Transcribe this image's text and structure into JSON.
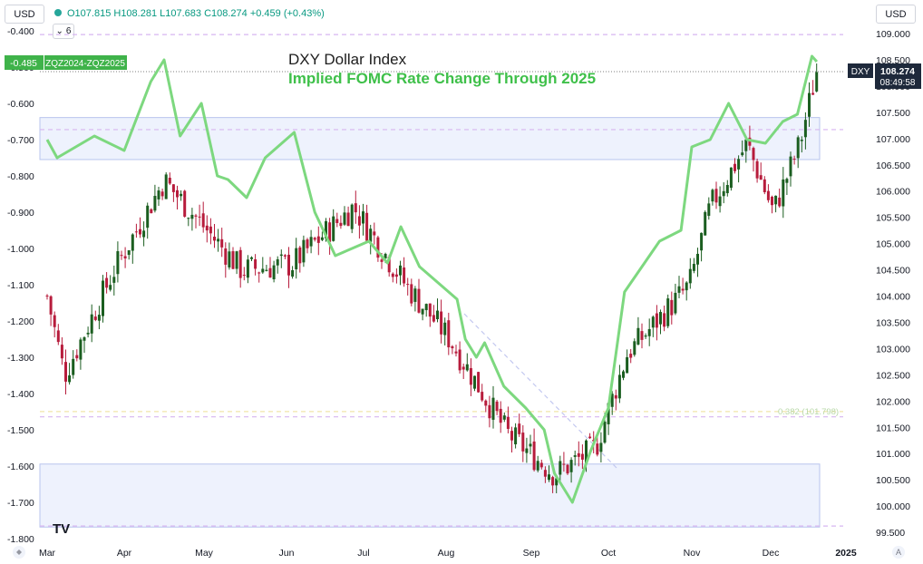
{
  "header": {
    "left_currency": "USD",
    "right_currency": "USD",
    "ohlc_text": "O107.815 H108.281 L107.683 C108.274 +0.459 (+0.43%)",
    "collapse_count": "6"
  },
  "corner": {
    "logo": "TV",
    "gear": "A"
  },
  "chart_data": {
    "type": "candlestick + line overlay",
    "title": "DXY Dollar Index",
    "subtitle": "Implied FOMC Rate Change Through 2025",
    "left_axis": {
      "ticks": [
        "-0.400",
        "-0.500",
        "-0.600",
        "-0.700",
        "-0.800",
        "-0.900",
        "-1.000",
        "-1.100",
        "-1.200",
        "-1.300",
        "-1.400",
        "-1.500",
        "-1.600",
        "-1.700",
        "-1.800"
      ],
      "range": [
        -1.8,
        -0.4
      ]
    },
    "right_axis": {
      "ticks": [
        "109.000",
        "108.500",
        "108.000",
        "107.500",
        "107.000",
        "106.500",
        "106.000",
        "105.500",
        "105.000",
        "104.500",
        "104.000",
        "103.500",
        "103.000",
        "102.500",
        "102.000",
        "101.500",
        "101.000",
        "100.500",
        "100.000",
        "99.500"
      ],
      "range": [
        99.5,
        109.0
      ]
    },
    "x_axis": {
      "ticks": [
        "Mar",
        "Apr",
        "May",
        "Jun",
        "Jul",
        "Aug",
        "Sep",
        "Oct",
        "Nov",
        "Dec",
        "2025"
      ]
    },
    "line_series": {
      "name": "ZQZ2024-ZQZ2025",
      "last_label": "-0.485",
      "color": "#7dd87f",
      "values": [
        [
          -0.7,
          "Mar"
        ],
        [
          -0.75,
          "Mar 5"
        ],
        [
          -0.69,
          "Mar 20"
        ],
        [
          -0.73,
          "Apr 1"
        ],
        [
          -0.54,
          "Apr 11"
        ],
        [
          -0.48,
          "Apr 16"
        ],
        [
          -0.69,
          "Apr 22"
        ],
        [
          -0.6,
          "Apr 30"
        ],
        [
          -0.8,
          "May 6"
        ],
        [
          -0.81,
          "May 10"
        ],
        [
          -0.86,
          "May 17"
        ],
        [
          -0.75,
          "May 24"
        ],
        [
          -0.68,
          "Jun 4"
        ],
        [
          -0.9,
          "Jun 12"
        ],
        [
          -1.02,
          "Jun 20"
        ],
        [
          -0.98,
          "Jul 3"
        ],
        [
          -1.04,
          "Jul 10"
        ],
        [
          -0.94,
          "Jul 15"
        ],
        [
          -1.05,
          "Jul 22"
        ],
        [
          -1.14,
          "Aug 5"
        ],
        [
          -1.25,
          "Aug 8"
        ],
        [
          -1.3,
          "Aug 12"
        ],
        [
          -1.26,
          "Aug 15"
        ],
        [
          -1.38,
          "Aug 22"
        ],
        [
          -1.44,
          "Aug 30"
        ],
        [
          -1.5,
          "Sep 6"
        ],
        [
          -1.62,
          "Sep 10"
        ],
        [
          -1.7,
          "Sep 17"
        ],
        [
          -1.56,
          "Sep 24"
        ],
        [
          -1.44,
          "Oct 1"
        ],
        [
          -1.12,
          "Oct 7"
        ],
        [
          -0.98,
          "Oct 20"
        ],
        [
          -0.95,
          "Oct 28"
        ],
        [
          -0.72,
          "Nov 1"
        ],
        [
          -0.7,
          "Nov 8"
        ],
        [
          -0.6,
          "Nov 15"
        ],
        [
          -0.7,
          "Nov 22"
        ],
        [
          -0.71,
          "Nov 29"
        ],
        [
          -0.65,
          "Dec 6"
        ],
        [
          -0.63,
          "Dec 12"
        ],
        [
          -0.47,
          "Dec 18"
        ],
        [
          -0.485,
          "Dec 20"
        ]
      ]
    },
    "candles": {
      "name": "DXY",
      "last_price": "108.274",
      "countdown": "08:49:58",
      "key_closes": [
        [
          104.0,
          "Mar"
        ],
        [
          102.5,
          "Mar 8"
        ],
        [
          104.5,
          "Mar 28"
        ],
        [
          106.2,
          "Apr 16"
        ],
        [
          105.2,
          "May 3"
        ],
        [
          104.5,
          "May 15"
        ],
        [
          104.6,
          "Jun 3"
        ],
        [
          105.7,
          "Jun 27"
        ],
        [
          104.2,
          "Jul 17"
        ],
        [
          103.2,
          "Aug 2"
        ],
        [
          101.4,
          "Aug 23"
        ],
        [
          100.6,
          "Sep 10"
        ],
        [
          101.1,
          "Sep 26"
        ],
        [
          102.9,
          "Oct 8"
        ],
        [
          104.2,
          "Oct 31"
        ],
        [
          105.7,
          "Nov 8"
        ],
        [
          106.9,
          "Nov 22"
        ],
        [
          105.6,
          "Dec 2"
        ],
        [
          106.9,
          "Dec 13"
        ],
        [
          108.3,
          "Dec 20"
        ]
      ]
    },
    "annotations": {
      "fib_label": "0.382 (101.798)",
      "upper_zone": [
        106.6,
        107.4
      ],
      "lower_zone": [
        99.6,
        100.8
      ]
    },
    "grid": false
  }
}
